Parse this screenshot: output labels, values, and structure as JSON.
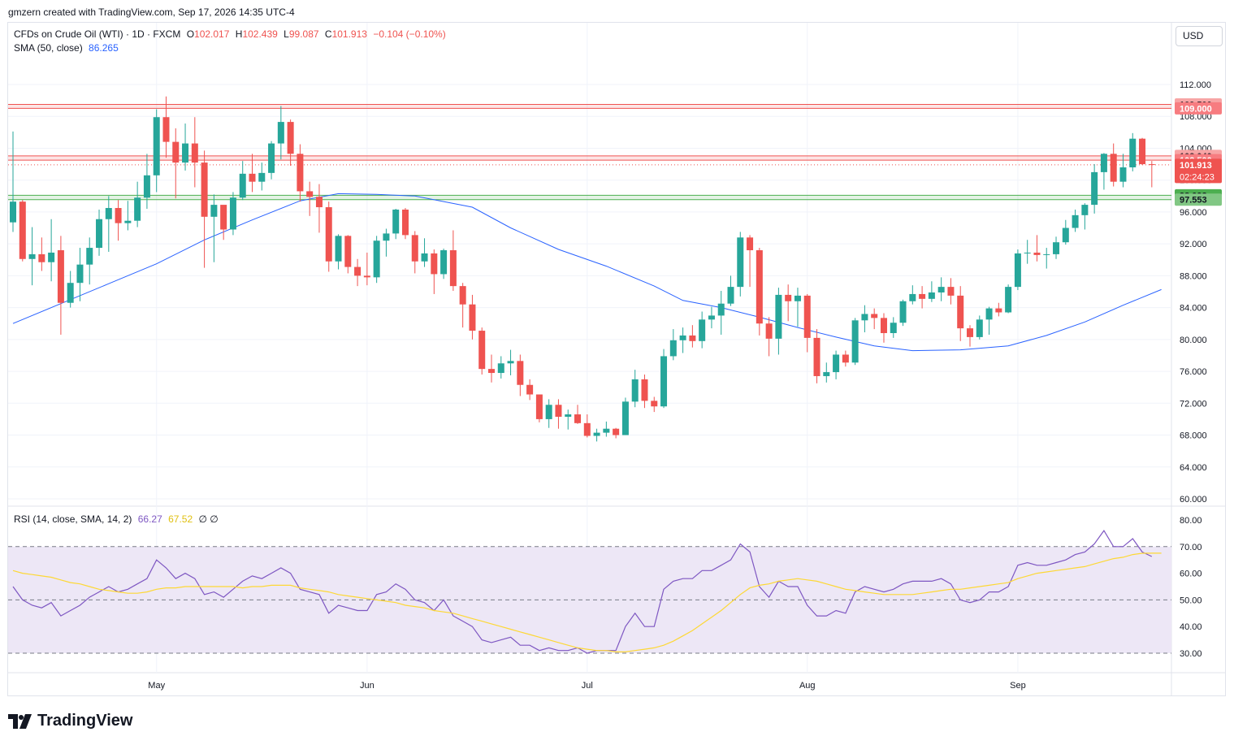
{
  "caption": "gmzern created with TradingView.com, Sep 17, 2026 14:35 UTC-4",
  "currency": "USD",
  "brand": "TradingView",
  "legend": {
    "symbol": "CFDs on Crude Oil (WTI) · 1D · FXCM",
    "o_label": "O",
    "o": "102.017",
    "h_label": "H",
    "h": "102.439",
    "l_label": "L",
    "l": "99.087",
    "c_label": "C",
    "c": "101.913",
    "change": "−0.104 (−0.10%)",
    "sma_label": "SMA (50, close)",
    "sma_value": "86.265",
    "rsi_label": "RSI (14, close, SMA, 14, 2)",
    "rsi_value": "66.27",
    "rsi_sma_value": "67.52",
    "rsi_extra": "∅ ∅"
  },
  "colors": {
    "up": "#26a69a",
    "down": "#ef5350",
    "sma": "#2962ff",
    "rsi": "#7e57c2",
    "rsi_sma": "#fdd835",
    "rsi_band": "#ede7f6"
  },
  "price_badges": [
    {
      "label": "109.500",
      "value": 109.5,
      "bg": "#f7a5a5",
      "fg": "#131722"
    },
    {
      "label": "109.000",
      "value": 109.0,
      "bg": "#f77c80",
      "fg": "#ffffff"
    },
    {
      "label": "103.040",
      "value": 103.04,
      "bg": "#f7a5a5",
      "fg": "#131722"
    },
    {
      "label": "102.500",
      "value": 102.5,
      "bg": "#f77c80",
      "fg": "#ffffff"
    },
    {
      "label": "101.913",
      "value": 101.913,
      "bg": "#ef5350",
      "fg": "#ffffff",
      "sub": "02:24:23"
    },
    {
      "label": "98.092",
      "value": 98.092,
      "bg": "#4caf50",
      "fg": "#131722"
    },
    {
      "label": "97.553",
      "value": 97.553,
      "bg": "#81c784",
      "fg": "#131722"
    }
  ],
  "chart_data": [
    {
      "type": "candlestick",
      "title": "CFDs on Crude Oil (WTI) · 1D · FXCM",
      "x_labels": [
        "May",
        "Jun",
        "Jul",
        "Aug",
        "Sep"
      ],
      "y_ticks": [
        "112.000",
        "108.000",
        "104.000",
        "100.000",
        "96.000",
        "92.000",
        "88.000",
        "84.000",
        "80.000",
        "76.000",
        "72.000",
        "68.000",
        "64.000",
        "60.000"
      ],
      "ylim": [
        60,
        112
      ],
      "zones": [
        {
          "from": 109.0,
          "to": 109.5,
          "color": "#ef5350"
        },
        {
          "from": 102.5,
          "to": 103.04,
          "color": "#ef5350"
        },
        {
          "from": 97.553,
          "to": 98.092,
          "color": "#4caf50"
        }
      ],
      "last_price": 101.913,
      "candles": [
        [
          94.7,
          97.3,
          93.5,
          106.1
        ],
        [
          97.3,
          90.1,
          89.8,
          97.5
        ],
        [
          90.1,
          90.7,
          86.8,
          94.1
        ],
        [
          90.7,
          89.7,
          88.6,
          92.8
        ],
        [
          89.7,
          90.9,
          87.3,
          95.1
        ],
        [
          91.2,
          84.6,
          80.6,
          93.0
        ],
        [
          84.6,
          87.1,
          84.0,
          88.6
        ],
        [
          87.1,
          89.4,
          84.8,
          91.5
        ],
        [
          89.4,
          91.5,
          86.9,
          92.8
        ],
        [
          91.5,
          95.1,
          90.5,
          96.3
        ],
        [
          95.1,
          96.5,
          91.0,
          98.0
        ],
        [
          96.5,
          94.6,
          92.4,
          97.5
        ],
        [
          94.6,
          94.9,
          93.7,
          97.4
        ],
        [
          94.9,
          97.8,
          94.1,
          99.8
        ],
        [
          97.8,
          100.6,
          96.4,
          103.3
        ],
        [
          100.6,
          107.9,
          98.5,
          108.9
        ],
        [
          107.9,
          104.8,
          102.8,
          110.5
        ],
        [
          104.8,
          102.2,
          97.7,
          106.5
        ],
        [
          102.2,
          104.6,
          101.2,
          107.1
        ],
        [
          104.6,
          102.2,
          99.1,
          107.9
        ],
        [
          102.2,
          95.4,
          89.0,
          103.7
        ],
        [
          95.4,
          96.9,
          89.7,
          98.2
        ],
        [
          96.9,
          93.8,
          92.5,
          96.7
        ],
        [
          93.8,
          97.8,
          93.1,
          98.5
        ],
        [
          97.8,
          100.8,
          97.5,
          102.4
        ],
        [
          100.8,
          99.8,
          98.5,
          103.3
        ],
        [
          99.8,
          100.9,
          98.7,
          102.2
        ],
        [
          100.9,
          104.6,
          100.1,
          104.9
        ],
        [
          104.6,
          107.3,
          102.6,
          109.3
        ],
        [
          107.3,
          103.3,
          101.8,
          107.6
        ],
        [
          103.3,
          98.6,
          97.3,
          104.5
        ],
        [
          98.6,
          97.9,
          95.5,
          99.8
        ],
        [
          97.9,
          96.6,
          93.4,
          99.5
        ],
        [
          96.6,
          89.8,
          88.5,
          97.3
        ],
        [
          89.8,
          93.0,
          88.8,
          93.2
        ],
        [
          93.0,
          89.1,
          88.3,
          93.1
        ],
        [
          89.1,
          88.0,
          86.7,
          90.1
        ],
        [
          88.0,
          87.8,
          86.8,
          90.9
        ],
        [
          87.8,
          92.4,
          87.1,
          93.0
        ],
        [
          92.4,
          93.3,
          90.4,
          93.9
        ],
        [
          93.3,
          96.3,
          92.6,
          96.4
        ],
        [
          96.3,
          93.1,
          92.6,
          96.5
        ],
        [
          93.1,
          89.8,
          88.3,
          93.6
        ],
        [
          89.8,
          90.8,
          89.1,
          92.7
        ],
        [
          90.8,
          88.2,
          85.7,
          91.3
        ],
        [
          88.2,
          91.2,
          87.6,
          91.4
        ],
        [
          91.2,
          86.7,
          86.1,
          93.7
        ],
        [
          86.7,
          84.4,
          81.5,
          87.1
        ],
        [
          84.4,
          81.1,
          80.0,
          85.6
        ],
        [
          81.1,
          76.3,
          75.6,
          81.5
        ],
        [
          76.3,
          75.8,
          74.6,
          78.1
        ],
        [
          75.8,
          77.0,
          75.1,
          77.9
        ],
        [
          77.0,
          77.3,
          75.5,
          78.7
        ],
        [
          77.3,
          74.3,
          72.9,
          78.1
        ],
        [
          74.3,
          73.1,
          72.4,
          75.0
        ],
        [
          73.1,
          70.0,
          69.6,
          73.1
        ],
        [
          70.0,
          71.8,
          68.9,
          72.5
        ],
        [
          71.8,
          70.3,
          68.8,
          72.5
        ],
        [
          70.3,
          70.6,
          68.7,
          71.2
        ],
        [
          70.6,
          69.5,
          69.4,
          71.8
        ],
        [
          69.5,
          67.9,
          67.7,
          70.6
        ],
        [
          67.9,
          68.3,
          67.2,
          68.8
        ],
        [
          68.3,
          68.8,
          67.8,
          69.7
        ],
        [
          68.8,
          68.0,
          67.6,
          68.9
        ],
        [
          68.0,
          72.2,
          68.0,
          72.7
        ],
        [
          72.2,
          75.0,
          71.5,
          76.2
        ],
        [
          75.0,
          72.3,
          71.4,
          75.6
        ],
        [
          72.3,
          71.6,
          70.9,
          72.8
        ],
        [
          71.6,
          77.9,
          71.4,
          78.8
        ],
        [
          77.9,
          79.9,
          77.4,
          81.3
        ],
        [
          79.9,
          80.5,
          78.3,
          81.5
        ],
        [
          80.5,
          79.8,
          79.0,
          81.8
        ],
        [
          79.8,
          82.5,
          78.9,
          83.5
        ],
        [
          82.5,
          83.0,
          81.4,
          84.1
        ],
        [
          83.0,
          84.5,
          80.6,
          86.1
        ],
        [
          84.5,
          86.6,
          84.2,
          88.0
        ],
        [
          86.6,
          92.8,
          85.4,
          93.5
        ],
        [
          92.8,
          91.2,
          86.6,
          93.1
        ],
        [
          91.2,
          82.0,
          80.5,
          91.5
        ],
        [
          82.0,
          80.1,
          77.9,
          82.8
        ],
        [
          80.1,
          85.6,
          78.1,
          86.5
        ],
        [
          85.6,
          84.8,
          82.3,
          86.9
        ],
        [
          84.8,
          85.5,
          81.6,
          86.5
        ],
        [
          85.5,
          80.2,
          78.4,
          85.7
        ],
        [
          80.2,
          75.4,
          74.5,
          81.3
        ],
        [
          75.4,
          75.9,
          74.6,
          77.1
        ],
        [
          75.9,
          78.1,
          75.0,
          78.6
        ],
        [
          78.1,
          77.1,
          76.6,
          78.6
        ],
        [
          77.1,
          82.4,
          76.8,
          82.7
        ],
        [
          82.4,
          83.2,
          80.9,
          84.3
        ],
        [
          83.2,
          82.7,
          81.3,
          83.9
        ],
        [
          82.7,
          80.8,
          79.6,
          83.3
        ],
        [
          80.8,
          82.1,
          80.2,
          82.8
        ],
        [
          82.1,
          84.8,
          81.7,
          85.0
        ],
        [
          84.8,
          85.7,
          84.4,
          86.8
        ],
        [
          85.7,
          85.1,
          83.9,
          86.7
        ],
        [
          85.1,
          85.9,
          84.7,
          87.3
        ],
        [
          85.9,
          86.6,
          84.8,
          87.8
        ],
        [
          86.6,
          85.5,
          84.4,
          87.7
        ],
        [
          85.5,
          81.4,
          79.8,
          86.7
        ],
        [
          81.4,
          80.3,
          79.1,
          81.8
        ],
        [
          80.3,
          82.5,
          80.0,
          83.0
        ],
        [
          82.5,
          83.9,
          80.6,
          84.1
        ],
        [
          83.9,
          83.4,
          82.9,
          84.6
        ],
        [
          83.4,
          86.6,
          83.3,
          86.9
        ],
        [
          86.6,
          90.8,
          86.2,
          91.3
        ],
        [
          90.8,
          90.9,
          89.5,
          92.5
        ],
        [
          90.9,
          90.6,
          89.8,
          93.1
        ],
        [
          90.6,
          90.7,
          88.9,
          91.5
        ],
        [
          90.7,
          92.2,
          90.1,
          92.9
        ],
        [
          92.2,
          94.0,
          91.9,
          95.0
        ],
        [
          94.0,
          95.6,
          93.5,
          96.3
        ],
        [
          95.6,
          96.9,
          93.8,
          97.1
        ],
        [
          96.9,
          101.0,
          95.8,
          102.0
        ],
        [
          101.0,
          103.3,
          98.8,
          103.4
        ],
        [
          103.3,
          99.8,
          99.2,
          104.6
        ],
        [
          99.8,
          101.6,
          99.1,
          103.3
        ],
        [
          101.6,
          105.2,
          101.1,
          105.9
        ],
        [
          105.2,
          102.0,
          101.9,
          105.3
        ],
        [
          102.0,
          101.9,
          99.1,
          102.4
        ]
      ],
      "sma": [
        [
          0,
          82.0
        ],
        [
          10,
          87.0
        ],
        [
          15,
          89.5
        ],
        [
          20,
          92.5
        ],
        [
          25,
          95.0
        ],
        [
          30,
          97.4
        ],
        [
          34,
          98.3
        ],
        [
          38,
          98.2
        ],
        [
          42,
          98.0
        ],
        [
          48,
          96.6
        ],
        [
          52,
          94.0
        ],
        [
          57,
          91.3
        ],
        [
          62,
          89.2
        ],
        [
          67,
          86.7
        ],
        [
          70,
          84.9
        ],
        [
          74,
          84.0
        ],
        [
          78,
          82.8
        ],
        [
          82,
          81.5
        ],
        [
          86,
          80.3
        ],
        [
          90,
          79.2
        ],
        [
          94,
          78.6
        ],
        [
          99,
          78.7
        ],
        [
          104,
          79.2
        ],
        [
          108,
          80.5
        ],
        [
          112,
          82.2
        ],
        [
          116,
          84.3
        ],
        [
          120,
          86.265
        ]
      ]
    },
    {
      "type": "line",
      "title": "RSI (14, close, SMA, 14, 2)",
      "y_ticks": [
        "80.00",
        "70.00",
        "60.00",
        "50.00",
        "40.00",
        "30.00"
      ],
      "ylim": [
        27,
        82
      ],
      "band": [
        30,
        70
      ],
      "midline": 50,
      "series": [
        {
          "name": "RSI",
          "values": [
            55,
            50,
            48,
            47,
            49,
            44,
            46,
            48,
            51,
            53,
            55,
            53,
            54,
            56,
            58,
            65,
            62,
            58,
            60,
            58,
            52,
            53,
            51,
            54,
            57,
            59,
            58,
            60,
            62,
            60,
            54,
            53,
            52,
            45,
            48,
            47,
            46,
            46,
            52,
            53,
            56,
            54,
            50,
            49,
            46,
            50,
            44,
            42,
            40,
            35,
            34,
            35,
            36,
            33,
            33,
            31,
            32,
            31,
            31,
            32,
            30,
            31,
            31,
            31,
            40,
            45,
            40,
            40,
            54,
            57,
            58,
            58,
            61,
            61,
            63,
            65,
            71,
            68,
            55,
            51,
            57,
            55,
            55,
            48,
            44,
            44,
            46,
            45,
            53,
            55,
            54,
            53,
            54,
            56,
            57,
            57,
            57,
            58,
            56,
            50,
            49,
            50,
            53,
            53,
            55,
            63,
            64,
            63,
            63,
            64,
            65,
            67,
            68,
            71,
            76,
            70,
            70,
            73,
            68,
            66.27
          ]
        },
        {
          "name": "RSI SMA",
          "values": [
            61,
            60,
            59.5,
            59,
            58.5,
            57.5,
            56.5,
            56,
            55,
            54,
            53.5,
            53,
            52.5,
            52.5,
            53,
            54,
            54.5,
            54.5,
            55,
            55,
            55,
            55,
            55,
            55,
            54.5,
            55,
            55,
            55.5,
            55.5,
            55.5,
            54.5,
            54,
            53.5,
            53,
            52,
            51.5,
            51,
            50.5,
            50,
            49.5,
            49,
            48,
            47.5,
            47,
            46,
            45.5,
            45,
            44,
            43,
            42,
            41,
            40,
            39,
            38,
            37,
            36,
            35,
            34,
            33,
            32,
            31.5,
            31,
            31,
            30.5,
            30.5,
            31,
            31.5,
            32,
            33,
            34.5,
            36.5,
            38.5,
            41,
            43.5,
            46,
            49,
            52,
            54.5,
            55.5,
            56,
            57,
            57.5,
            58,
            57.5,
            57,
            56,
            55,
            54,
            53.5,
            53,
            52.5,
            52,
            52,
            52,
            52,
            52.5,
            53,
            53.5,
            54,
            54,
            54.5,
            55,
            55.5,
            56,
            56.5,
            58,
            59,
            60,
            60.5,
            61,
            61.5,
            62,
            62.5,
            63.5,
            64.5,
            65.5,
            66,
            67,
            67.5,
            67.52,
            67.52
          ]
        }
      ]
    }
  ]
}
